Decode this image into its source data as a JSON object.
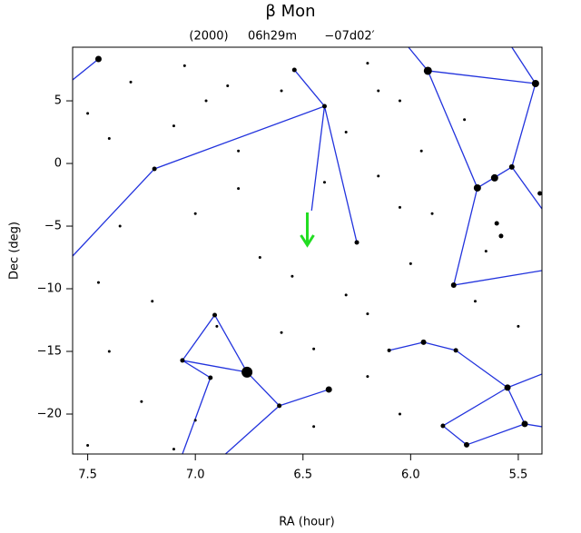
{
  "chart_data": {
    "type": "scatter",
    "title": "β Mon",
    "annotations": [
      "(2000)",
      "06h29m",
      "−07d02′"
    ],
    "xlabel": "RA (hour)",
    "ylabel": "Dec (deg)",
    "xlim": [
      7.57,
      5.39
    ],
    "ylim": [
      -23.19,
      9.28
    ],
    "xticks": [
      7.5,
      {
        "value": 7,
        "label": "7.0"
      },
      6.5,
      {
        "value": 6,
        "label": "6.0"
      },
      5.5
    ],
    "yticks": [
      {
        "value": -20,
        "label": "−20"
      },
      {
        "value": -15,
        "label": "−15"
      },
      {
        "value": -10,
        "label": "−10"
      },
      {
        "value": -5,
        "label": "−5"
      },
      0,
      5
    ],
    "series": [
      {
        "color": "#000000",
        "x": [
          7.45,
          5.92,
          5.42,
          6.4,
          7.19,
          5.69,
          5.61,
          5.53,
          5.4,
          6.76,
          6.38,
          6.61,
          7.06,
          6.91,
          6.93,
          5.8,
          5.94,
          5.79,
          5.55,
          5.47,
          5.74,
          5.85,
          6.1,
          6.54,
          6.25,
          5.58,
          5.6,
          7.3,
          7.05,
          6.85,
          6.6,
          6.2,
          6.05,
          7.4,
          7.1,
          6.8,
          6.3,
          6.15,
          6.05,
          7.35,
          7.0,
          6.7,
          6.55,
          6.3,
          7.45,
          7.2,
          6.9,
          6.6,
          6.2,
          6.0,
          5.9,
          5.7,
          5.5,
          7.4,
          7.25,
          7.0,
          6.45,
          6.2,
          6.05,
          7.5,
          7.1,
          6.4,
          5.95,
          5.75,
          6.95,
          7.5,
          6.15,
          6.8,
          6.45,
          5.65
        ],
        "values": [
          8.34,
          7.4,
          6.38,
          4.57,
          -0.43,
          -1.95,
          -1.15,
          -0.28,
          -2.39,
          -16.66,
          -18.04,
          -19.34,
          -15.72,
          -12.1,
          -17.1,
          -9.71,
          -14.27,
          -14.92,
          -17.89,
          -20.79,
          -22.46,
          -20.94,
          -14.92,
          7.47,
          -6.3,
          -5.79,
          -4.78,
          6.5,
          7.8,
          6.2,
          5.8,
          8.0,
          5.0,
          2.0,
          3.0,
          1.0,
          2.5,
          -1.0,
          -3.5,
          -5.0,
          -4.0,
          -7.5,
          -9.0,
          -10.5,
          -9.5,
          -11.0,
          -13.0,
          -13.5,
          -12.0,
          -8.0,
          -4.0,
          -11.0,
          -13.0,
          -15.0,
          -19.0,
          -20.5,
          -21.0,
          -17.0,
          -20.0,
          -22.5,
          -22.8,
          -1.5,
          1.0,
          3.5,
          5.0,
          4.0,
          5.8,
          -2.0,
          -14.8,
          -7.0
        ],
        "sizes": [
          3.5,
          4.5,
          4,
          2.5,
          2.5,
          4,
          4,
          3,
          2.5,
          6,
          3.5,
          2.5,
          2.5,
          2.5,
          2.5,
          3,
          3,
          2.5,
          3.5,
          3.5,
          3,
          2.5,
          2,
          2.5,
          2.5,
          2.5,
          2.5,
          1.5,
          1.5,
          1.5,
          1.5,
          1.5,
          1.5,
          1.5,
          1.5,
          1.5,
          1.5,
          1.5,
          1.5,
          1.5,
          1.5,
          1.5,
          1.5,
          1.5,
          1.5,
          1.5,
          1.5,
          1.5,
          1.5,
          1.5,
          1.5,
          1.5,
          1.5,
          1.5,
          1.5,
          1.5,
          1.5,
          1.5,
          1.5,
          1.5,
          1.5,
          1.5,
          1.5,
          1.5,
          1.5,
          1.5,
          1.5,
          1.5,
          1.5,
          1.5
        ]
      }
    ],
    "line_color": "#2233dd",
    "lines": [
      {
        "x": [
          7.57,
          7.45
        ],
        "y": [
          6.67,
          8.34
        ]
      },
      {
        "x": [
          7.57,
          7.19,
          6.4,
          6.54
        ],
        "y": [
          -7.39,
          -0.43,
          4.57,
          7.47
        ]
      },
      {
        "x": [
          6.25,
          6.4,
          6.46
        ],
        "y": [
          -6.3,
          4.57,
          -3.76
        ]
      },
      {
        "x": [
          6.01,
          5.92,
          5.69,
          5.8,
          5.39
        ],
        "y": [
          9.28,
          7.4,
          -1.95,
          -9.71,
          -8.55
        ]
      },
      {
        "x": [
          5.92,
          5.42
        ],
        "y": [
          7.4,
          6.38
        ]
      },
      {
        "x": [
          5.53,
          5.42,
          5.53,
          5.69
        ],
        "y": [
          9.28,
          6.38,
          -0.28,
          -1.95
        ]
      },
      {
        "x": [
          5.53,
          5.39
        ],
        "y": [
          -0.28,
          -3.62
        ]
      },
      {
        "x": [
          7.06,
          6.93,
          7.06,
          6.91,
          6.76,
          6.61,
          6.38
        ],
        "y": [
          -23.19,
          -17.1,
          -15.72,
          -12.1,
          -16.66,
          -19.34,
          -18.04
        ]
      },
      {
        "x": [
          7.06,
          6.76
        ],
        "y": [
          -15.72,
          -16.66
        ]
      },
      {
        "x": [
          6.86,
          6.61
        ],
        "y": [
          -23.19,
          -19.34
        ]
      },
      {
        "x": [
          6.1,
          5.94,
          5.79,
          5.55,
          5.39
        ],
        "y": [
          -14.92,
          -14.27,
          -14.92,
          -17.89,
          -16.81
        ]
      },
      {
        "x": [
          5.55,
          5.47,
          5.39
        ],
        "y": [
          -17.89,
          -20.79,
          -21.01
        ]
      },
      {
        "x": [
          5.55,
          5.85,
          5.74,
          5.47
        ],
        "y": [
          -17.89,
          -20.94,
          -22.46,
          -20.79
        ]
      }
    ],
    "marker": {
      "x": 6.48,
      "y": -6.52,
      "color": "#22dd22"
    }
  }
}
